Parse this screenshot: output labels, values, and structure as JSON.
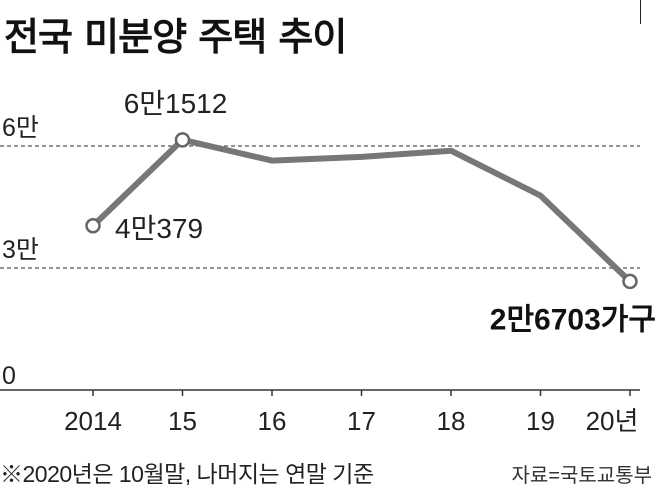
{
  "chart_data": {
    "type": "line",
    "title": "전국 미분양 주택 추이",
    "x": [
      "2014",
      "15",
      "16",
      "17",
      "18",
      "19",
      "20년"
    ],
    "values": [
      40379,
      61512,
      56413,
      57330,
      58838,
      47797,
      26703
    ],
    "yticks": [
      {
        "value": 0,
        "label": "0"
      },
      {
        "value": 30000,
        "label": "3만"
      },
      {
        "value": 60000,
        "label": "6만"
      }
    ],
    "ylim": [
      0,
      80000
    ],
    "grid": "dashed lines at 3만 and 6만",
    "annotations": [
      {
        "index": 0,
        "label": "4만379",
        "bold": false
      },
      {
        "index": 1,
        "label": "6만1512",
        "bold": false
      },
      {
        "index": 6,
        "label": "2만6703가구",
        "bold": true
      }
    ],
    "line_color": "#777777",
    "marker_points": [
      0,
      1,
      6
    ]
  },
  "footnote": "※2020년은 10월말, 나머지는 연말 기준",
  "source": "자료=국토교통부"
}
